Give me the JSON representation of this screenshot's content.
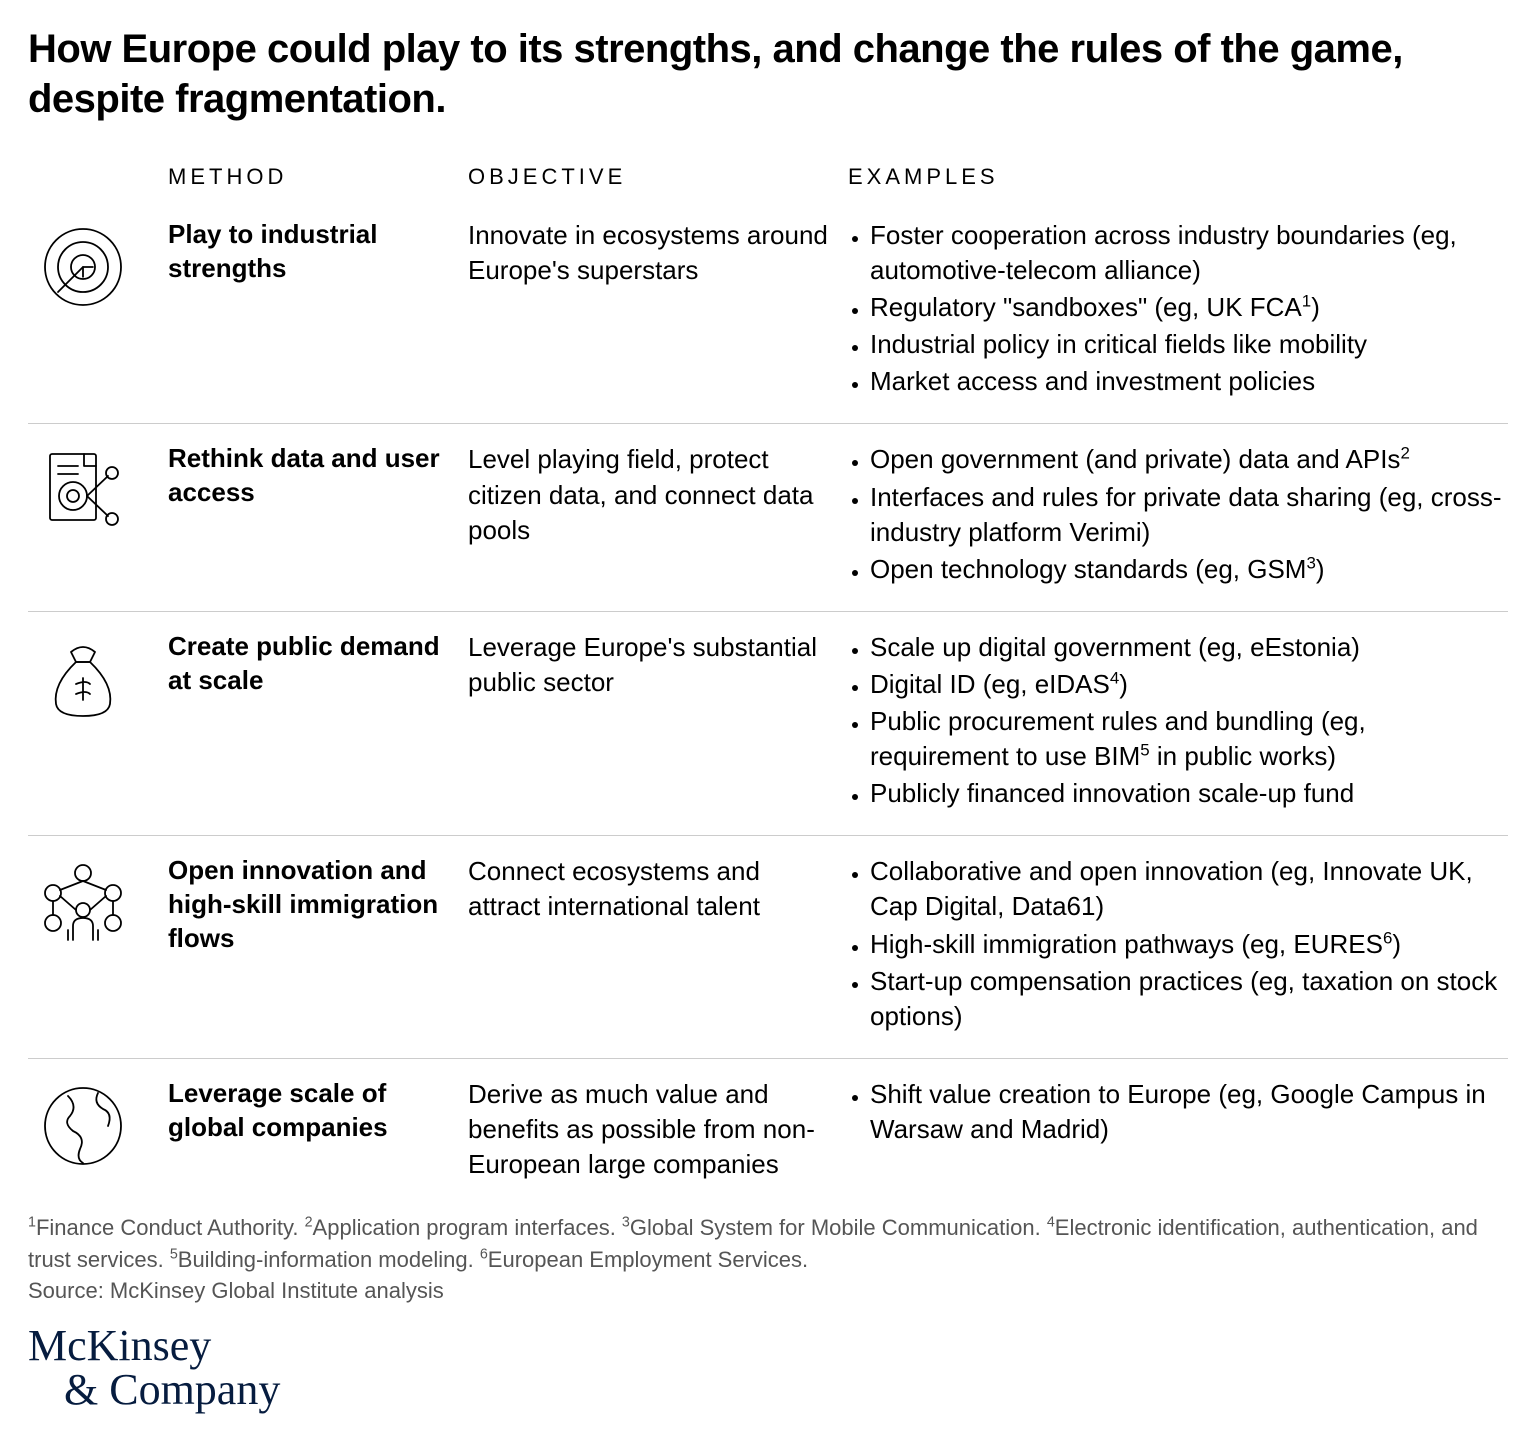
{
  "title": "How Europe could play to its strengths, and change the rules of the game, despite fragmentation.",
  "columns": {
    "method": "METHOD",
    "objective": "OBJECTIVE",
    "examples": "EXAMPLES"
  },
  "rows": [
    {
      "method": "Play to industrial strengths",
      "objective": "Innovate in ecosystems around Europe's superstars",
      "examples": [
        "Foster cooperation across industry boundaries (eg, automotive-telecom alliance)",
        "Regulatory \"sandboxes\" (eg, UK FCA<sup>1</sup>)",
        "Industrial policy in critical fields like mobility",
        "Market access and investment policies"
      ],
      "icon": "target"
    },
    {
      "method": "Rethink data and user access",
      "objective": "Level playing field, protect citizen data, and connect data pools",
      "examples": [
        "Open government (and private) data and APIs<sup>2</sup>",
        "Interfaces and rules for private data sharing (eg, cross-industry platform Verimi)",
        "Open technology standards (eg, GSM<sup>3</sup>)"
      ],
      "icon": "data-doc"
    },
    {
      "method": "Create public demand at scale",
      "objective": "Leverage Europe's substantial public sector",
      "examples": [
        "Scale up digital government (eg, eEstonia)",
        "Digital ID (eg, eIDAS<sup>4</sup>)",
        "Public procurement rules and bundling (eg, requirement to use BIM<sup>5</sup> in public works)",
        "Publicly financed innovation scale-up fund"
      ],
      "icon": "money-bag"
    },
    {
      "method": "Open innovation and high-skill immigration flows",
      "objective": "Connect ecosystems and attract international talent",
      "examples": [
        "Collaborative and open innovation (eg, Innovate UK, Cap Digital, Data61)",
        "High-skill immigration pathways (eg, EURES<sup>6</sup>)",
        "Start-up compensation practices (eg, taxation on stock options)"
      ],
      "icon": "network"
    },
    {
      "method": "Leverage scale of global companies",
      "objective": "Derive as much value and benefits as possible from non-European large companies",
      "examples": [
        "Shift value creation to Europe (eg, Google Campus in Warsaw and Madrid)"
      ],
      "icon": "globe"
    }
  ],
  "footnotes": "<sup>1</sup>Finance Conduct Authority. <sup>2</sup>Application program interfaces. <sup>3</sup>Global System for Mobile Communication. <sup>4</sup>Electronic identification, authentication, and trust services. <sup>5</sup>Building-information modeling. <sup>6</sup>European Employment Services.",
  "source": "Source: McKinsey Global Institute analysis",
  "logo": {
    "line1": "McKinsey",
    "line2": "& Company"
  },
  "style": {
    "text_color": "#000000",
    "muted_color": "#555555",
    "border_color": "#cccccc",
    "logo_color": "#061c3f",
    "background": "#ffffff",
    "title_fontsize": 40,
    "body_fontsize": 26,
    "header_letterspacing": 4
  }
}
